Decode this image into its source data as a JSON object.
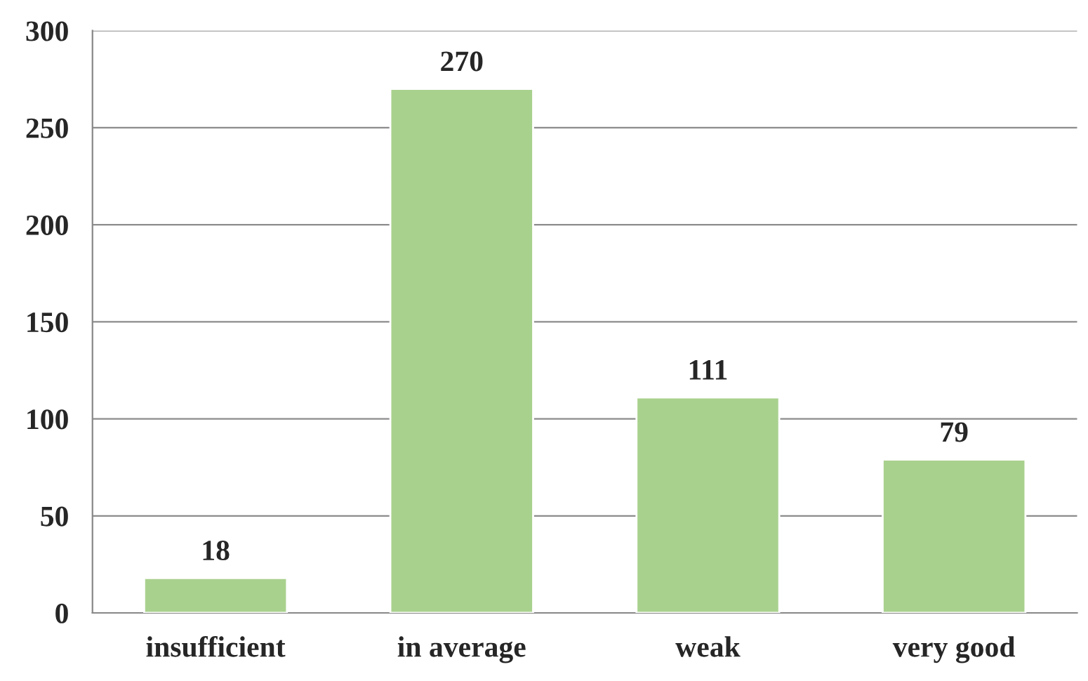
{
  "chart_data": {
    "type": "bar",
    "categories": [
      "insufficient",
      "in average",
      "weak",
      "very good"
    ],
    "values": [
      18,
      270,
      111,
      79
    ],
    "color": "#a9d18e",
    "ylim": [
      0,
      300
    ],
    "yticks": [
      0,
      50,
      100,
      150,
      200,
      250,
      300
    ],
    "grid": "y",
    "data_labels": true
  }
}
